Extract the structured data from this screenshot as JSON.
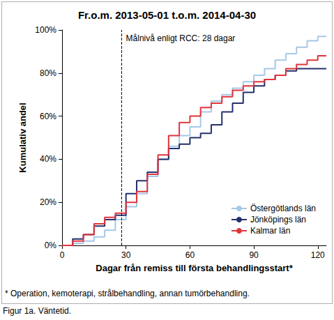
{
  "chart_data": {
    "type": "step",
    "title": "Fr.o.m. 2013-05-01 t.o.m. 2014-04-30",
    "x_label": "Dagar från remiss till första behandlingsstart*",
    "y_label": "Kumulativ andel",
    "annotation": {
      "text": "Målnivå enligt RCC: 28 dagar",
      "x": 28,
      "line_style": "dashed"
    },
    "footnote": "* Operation, kemoterapi, strålbehandling, annan tumörbehandling.",
    "caption": "Figur 1a. Väntetid.",
    "x": [
      0,
      5,
      10,
      15,
      20,
      25,
      30,
      35,
      40,
      45,
      50,
      55,
      60,
      65,
      70,
      75,
      80,
      85,
      90,
      95,
      100,
      105,
      110,
      115,
      120,
      124
    ],
    "series": [
      {
        "name": "Östergötlands län",
        "color": "#a6c8e8",
        "marker": "none",
        "line_style": "solid",
        "values": [
          0,
          1,
          2,
          4,
          7,
          12,
          18,
          24,
          32,
          40,
          46,
          51,
          55,
          62,
          67,
          70,
          73,
          76,
          79,
          82,
          86,
          89,
          92,
          95,
          97,
          97
        ]
      },
      {
        "name": "Jönköpings län",
        "color": "#24306b",
        "marker": "none",
        "line_style": "solid",
        "values": [
          0,
          3,
          5,
          9,
          12,
          14,
          24,
          30,
          34,
          40,
          45,
          47,
          50,
          52,
          56,
          62,
          66,
          71,
          74,
          77,
          79,
          81,
          82,
          82,
          82,
          82
        ]
      },
      {
        "name": "Kalmar län",
        "color": "#e0343c",
        "marker": "none",
        "line_style": "solid",
        "values": [
          0,
          2,
          5,
          10,
          13,
          15,
          20,
          25,
          33,
          42,
          51,
          57,
          60,
          64,
          66,
          69,
          72,
          74,
          76,
          77,
          79,
          82,
          84,
          86,
          88,
          88
        ]
      }
    ],
    "xlim": [
      0,
      124
    ],
    "xticks": [
      0,
      30,
      60,
      90,
      120
    ],
    "ylim": [
      0,
      100
    ],
    "yticks": [
      {
        "value": 0,
        "label": "0%"
      },
      {
        "value": 20,
        "label": "20%"
      },
      {
        "value": 40,
        "label": "40%"
      },
      {
        "value": 60,
        "label": "60%"
      },
      {
        "value": 80,
        "label": "80%"
      },
      {
        "value": 100,
        "label": "100%"
      }
    ],
    "grid": false,
    "legend": "bottom-right"
  }
}
